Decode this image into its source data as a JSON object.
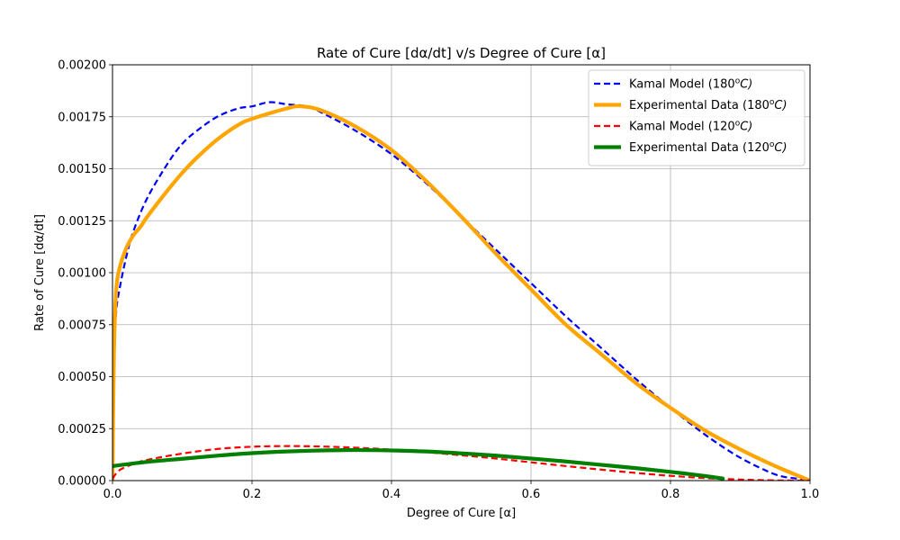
{
  "chart_data": {
    "type": "line",
    "title": "Rate of Cure [dα/dt] v/s Degree of Cure [α]",
    "xlabel": "Degree of Cure [α]",
    "ylabel": "Rate of Cure [dα/dt]",
    "xlim": [
      0,
      1
    ],
    "ylim": [
      0,
      0.002
    ],
    "xticks": [
      0,
      0.2,
      0.4,
      0.6,
      0.8,
      1.0
    ],
    "xtick_labels": [
      "0.0",
      "0.2",
      "0.4",
      "0.6",
      "0.8",
      "1.0"
    ],
    "yticks": [
      0,
      0.00025,
      0.0005,
      0.00075,
      0.001,
      0.00125,
      0.0015,
      0.00175,
      0.002
    ],
    "ytick_labels": [
      "0.00000",
      "0.00025",
      "0.00050",
      "0.00075",
      "0.00100",
      "0.00125",
      "0.00150",
      "0.00175",
      "0.00200"
    ],
    "grid": true,
    "legend_position": "top-right",
    "series": [
      {
        "name": "Kamal Model (180",
        "name_sup": "o",
        "name_unit": "C)",
        "color": "#0000ff",
        "style": "dashed",
        "x": [
          0.0,
          0.005,
          0.01,
          0.02,
          0.03,
          0.05,
          0.08,
          0.1,
          0.12,
          0.15,
          0.18,
          0.2,
          0.225,
          0.25,
          0.28,
          0.3,
          0.35,
          0.4,
          0.45,
          0.5,
          0.55,
          0.6,
          0.65,
          0.7,
          0.75,
          0.8,
          0.85,
          0.9,
          0.95,
          0.98,
          1.0
        ],
        "y": [
          0.0005,
          0.0008,
          0.00092,
          0.00108,
          0.0012,
          0.00136,
          0.00153,
          0.00162,
          0.00168,
          0.00175,
          0.00179,
          0.0018,
          0.00182,
          0.00181,
          0.0018,
          0.00177,
          0.00168,
          0.00157,
          0.00143,
          0.00127,
          0.00111,
          0.00095,
          0.00079,
          0.00064,
          0.00049,
          0.00035,
          0.00022,
          0.00011,
          3e-05,
          1e-05,
          0.0
        ]
      },
      {
        "name": "Experimental Data (180",
        "name_sup": "o",
        "name_unit": "C)",
        "color": "#ffa500",
        "style": "solid",
        "x": [
          0.0,
          0.002,
          0.005,
          0.01,
          0.02,
          0.03,
          0.04,
          0.05,
          0.08,
          0.1,
          0.12,
          0.15,
          0.18,
          0.2,
          0.25,
          0.27,
          0.3,
          0.35,
          0.4,
          0.45,
          0.5,
          0.55,
          0.6,
          0.65,
          0.7,
          0.75,
          0.8,
          0.85,
          0.9,
          0.95,
          1.0
        ],
        "y": [
          0.0,
          0.0006,
          0.0009,
          0.00102,
          0.00112,
          0.00118,
          0.00122,
          0.00127,
          0.0014,
          0.00148,
          0.00155,
          0.00164,
          0.00171,
          0.00174,
          0.00179,
          0.0018,
          0.00178,
          0.0017,
          0.00159,
          0.00144,
          0.00127,
          0.00109,
          0.00092,
          0.00075,
          0.00061,
          0.00047,
          0.00035,
          0.00024,
          0.00015,
          7e-05,
          0.0
        ]
      },
      {
        "name": "Kamal Model (120",
        "name_sup": "o",
        "name_unit": "C)",
        "color": "#ff0000",
        "style": "dashed",
        "x": [
          0.0,
          0.01,
          0.03,
          0.05,
          0.1,
          0.15,
          0.2,
          0.25,
          0.3,
          0.35,
          0.4,
          0.45,
          0.5,
          0.55,
          0.6,
          0.65,
          0.7,
          0.75,
          0.8,
          0.85,
          0.9,
          0.95,
          1.0
        ],
        "y": [
          1e-05,
          5e-05,
          8e-05,
          0.0001,
          0.00013,
          0.000152,
          0.000163,
          0.000166,
          0.000164,
          0.000158,
          0.000149,
          0.000137,
          0.000122,
          0.000106,
          8.8e-05,
          7e-05,
          5.3e-05,
          3.7e-05,
          2.3e-05,
          1.2e-05,
          5e-06,
          1e-06,
          0.0
        ]
      },
      {
        "name": "Experimental Data (120",
        "name_sup": "o",
        "name_unit": "C)",
        "color": "#008000",
        "style": "solid",
        "x": [
          0.0,
          0.05,
          0.1,
          0.15,
          0.2,
          0.25,
          0.3,
          0.35,
          0.4,
          0.45,
          0.5,
          0.55,
          0.6,
          0.65,
          0.7,
          0.75,
          0.8,
          0.85,
          0.875
        ],
        "y": [
          7e-05,
          9e-05,
          0.000105,
          0.00012,
          0.000132,
          0.00014,
          0.000145,
          0.000147,
          0.000145,
          0.00014,
          0.000131,
          0.00012,
          0.000106,
          9.2e-05,
          7.6e-05,
          6e-05,
          4.2e-05,
          2.2e-05,
          1e-05
        ]
      }
    ]
  }
}
